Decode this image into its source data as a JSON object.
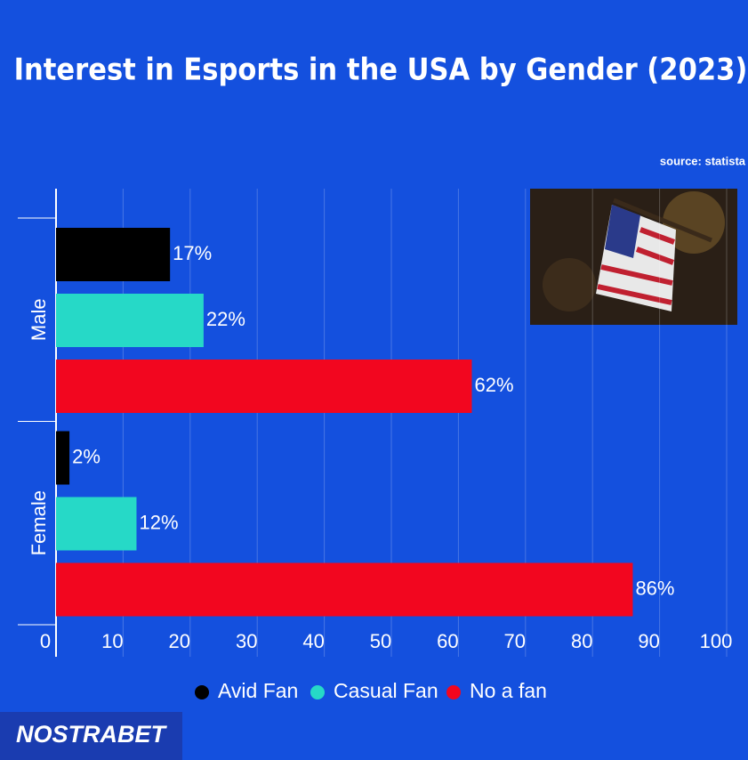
{
  "chart_data": {
    "type": "bar",
    "orientation": "horizontal",
    "title": "Interest in Esports in the USA by Gender (2023)",
    "source": "source: statista",
    "brand": "NOSTRABET",
    "categories": [
      "Male",
      "Female"
    ],
    "series": [
      {
        "name": "Avid Fan",
        "color": "#000000",
        "values": [
          17,
          2
        ],
        "value_labels": [
          "17%",
          "2%"
        ]
      },
      {
        "name": "Casual Fan",
        "color": "#26d9c7",
        "values": [
          22,
          12
        ],
        "value_labels": [
          "22%",
          "12%"
        ]
      },
      {
        "name": "No a fan",
        "color": "#f2061f",
        "values": [
          62,
          86
        ],
        "value_labels": [
          "62%",
          "86%"
        ]
      }
    ],
    "xlim": [
      0,
      100
    ],
    "xticks": [
      0,
      10,
      20,
      30,
      40,
      50,
      60,
      70,
      80,
      90,
      100
    ],
    "grid": true,
    "legend": "bottom"
  }
}
